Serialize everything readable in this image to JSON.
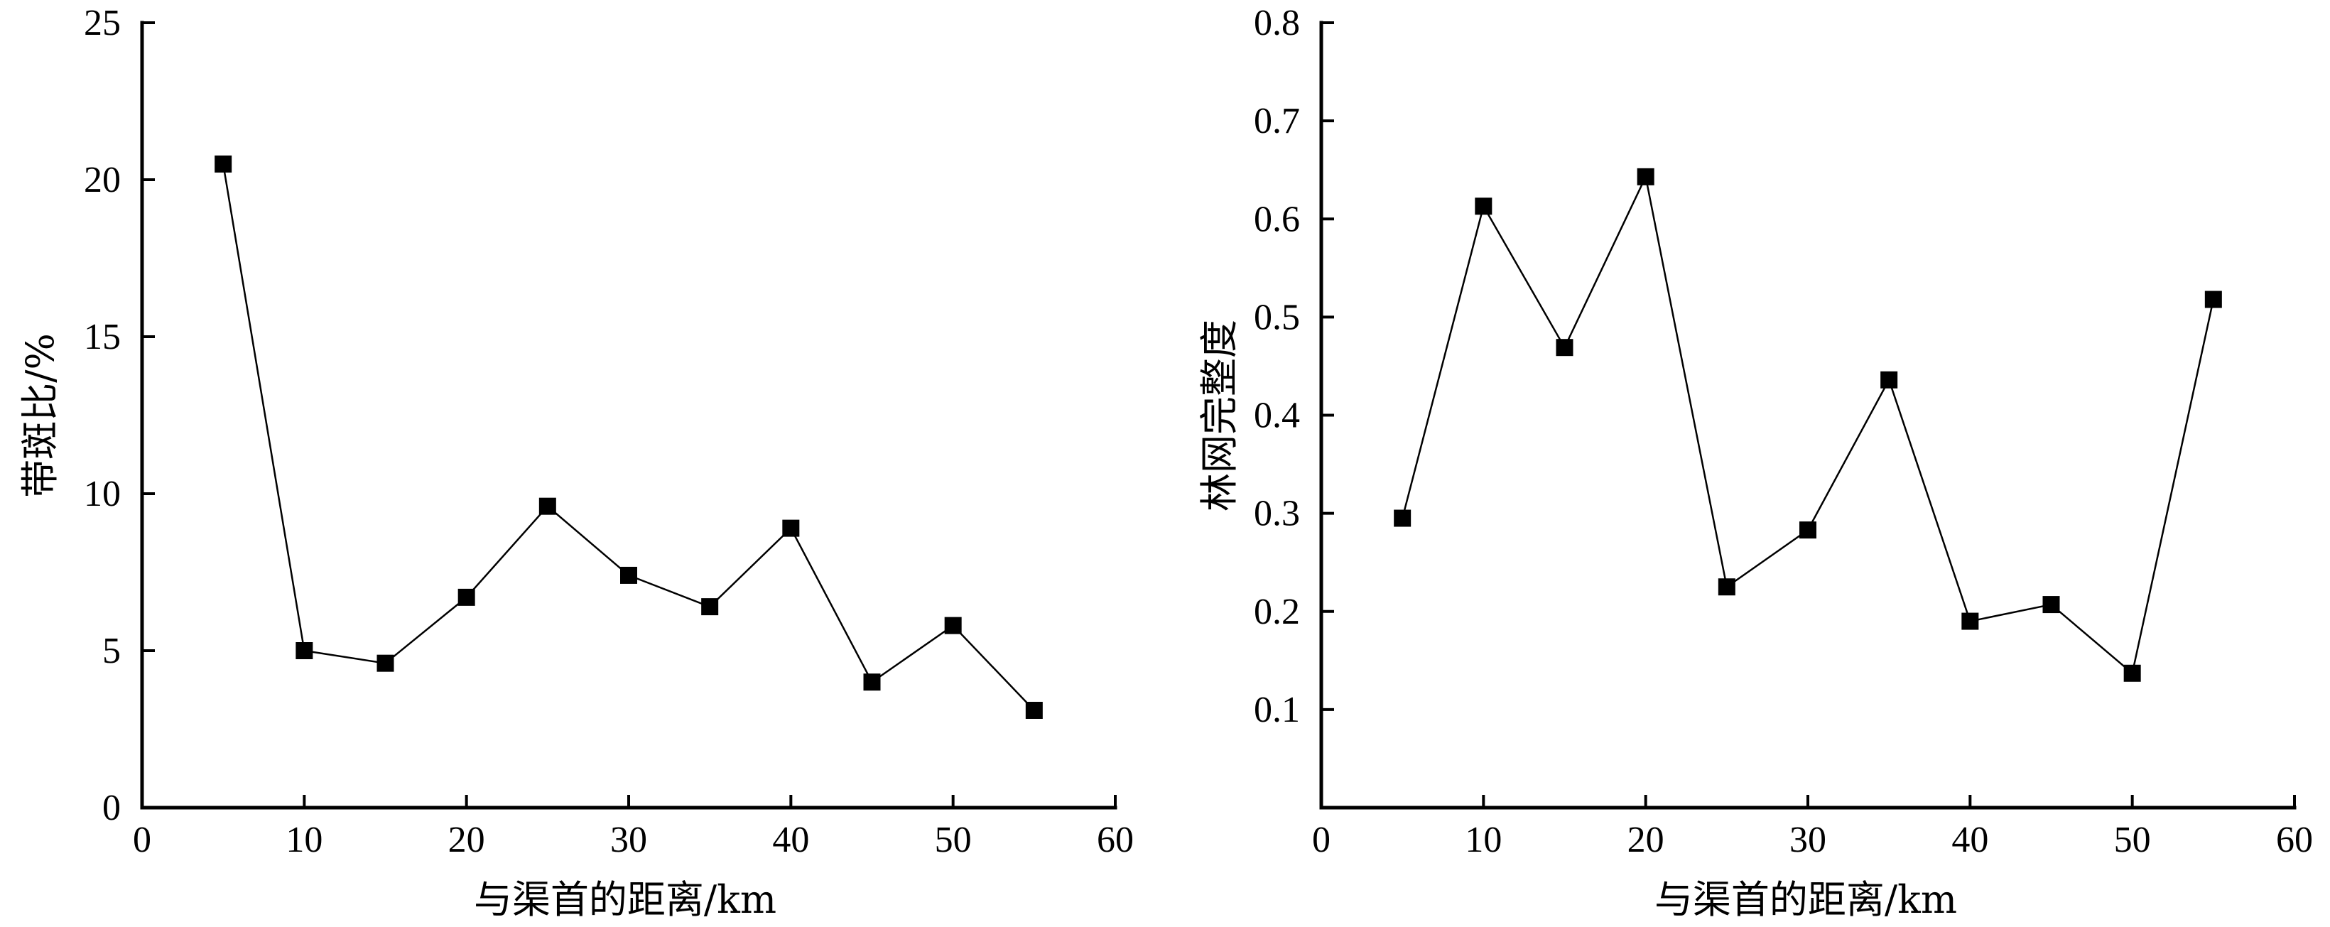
{
  "chart_data": [
    {
      "type": "line",
      "xlabel": "与渠首的距离/km",
      "ylabel": "带斑比/%",
      "xlim": [
        0,
        60
      ],
      "ylim": [
        0,
        25
      ],
      "xticks": [
        0,
        10,
        20,
        30,
        40,
        50,
        60
      ],
      "yticks": [
        0,
        5,
        10,
        15,
        20,
        25
      ],
      "xtick_labels": [
        "0",
        "10",
        "20",
        "30",
        "40",
        "50",
        "60"
      ],
      "ytick_labels": [
        "0",
        "5",
        "10",
        "15",
        "20",
        "25"
      ],
      "grid": false,
      "marker": "square",
      "series": [
        {
          "x": [
            5,
            10,
            15,
            20,
            25,
            30,
            35,
            40,
            45,
            50,
            55
          ],
          "y": [
            20.5,
            5.0,
            4.6,
            6.7,
            9.6,
            7.4,
            6.4,
            8.9,
            4.0,
            5.8,
            3.1
          ]
        }
      ]
    },
    {
      "type": "line",
      "xlabel": "与渠首的距离/km",
      "ylabel": "林网完整度",
      "xlim": [
        0,
        60
      ],
      "ylim": [
        0,
        0.8
      ],
      "xticks": [
        0,
        10,
        20,
        30,
        40,
        50,
        60
      ],
      "yticks": [
        0.1,
        0.2,
        0.3,
        0.4,
        0.5,
        0.6,
        0.7,
        0.8
      ],
      "xtick_labels": [
        "0",
        "10",
        "20",
        "30",
        "40",
        "50",
        "60"
      ],
      "ytick_labels": [
        "0.1",
        "0.2",
        "0.3",
        "0.4",
        "0.5",
        "0.6",
        "0.7",
        "0.8"
      ],
      "grid": false,
      "marker": "square",
      "series": [
        {
          "x": [
            5,
            10,
            15,
            20,
            25,
            30,
            35,
            40,
            45,
            50,
            55
          ],
          "y": [
            0.295,
            0.613,
            0.469,
            0.643,
            0.225,
            0.283,
            0.436,
            0.19,
            0.207,
            0.137,
            0.518
          ]
        }
      ]
    }
  ]
}
